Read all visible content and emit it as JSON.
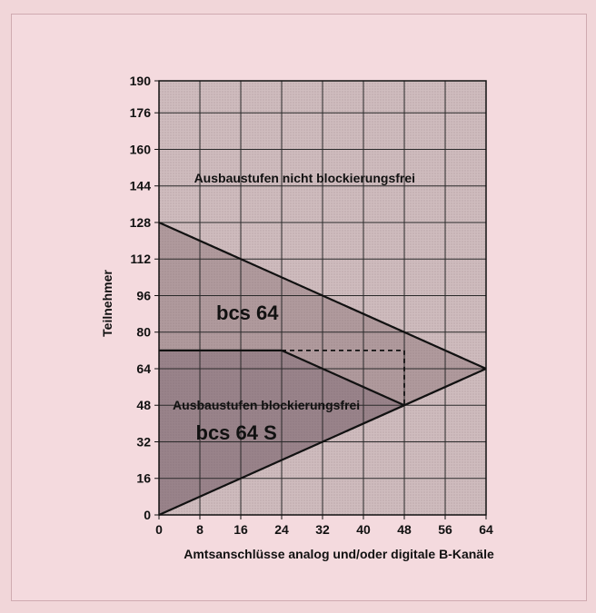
{
  "chart_data": {
    "type": "area",
    "xlabel": "Amtsanschlüsse analog und/oder digitale B-Kanäle",
    "ylabel": "Teilnehmer",
    "xlim": [
      0,
      64
    ],
    "ylim": [
      0,
      190
    ],
    "xticks": [
      0,
      8,
      16,
      24,
      32,
      40,
      48,
      56,
      64
    ],
    "yticks": [
      0,
      16,
      32,
      48,
      64,
      80,
      96,
      112,
      128,
      144,
      160,
      176,
      190
    ],
    "grid": true,
    "lines": {
      "bcs64_upper": [
        [
          0,
          128
        ],
        [
          64,
          64
        ]
      ],
      "lower_diagonal": [
        [
          0,
          0
        ],
        [
          64,
          64
        ]
      ],
      "bcs64s_upper": [
        [
          0,
          72
        ],
        [
          24,
          72
        ],
        [
          48,
          48
        ]
      ],
      "dashed_limit": [
        [
          24,
          72
        ],
        [
          48,
          72
        ],
        [
          48,
          48
        ]
      ]
    },
    "labels": {
      "region_top": "Ausbaustufen nicht blockierungsfrei",
      "region_bottom": "Ausbaustufen blockierungsfrei",
      "bcs64": "bcs 64",
      "bcs64s": "bcs 64 S"
    },
    "colors": {
      "page": "#f1d6d9",
      "plot_light": "#cfbcbe",
      "plot_dark": "#b09a9d",
      "plot_darker": "#99838a",
      "ink": "#111111"
    }
  }
}
